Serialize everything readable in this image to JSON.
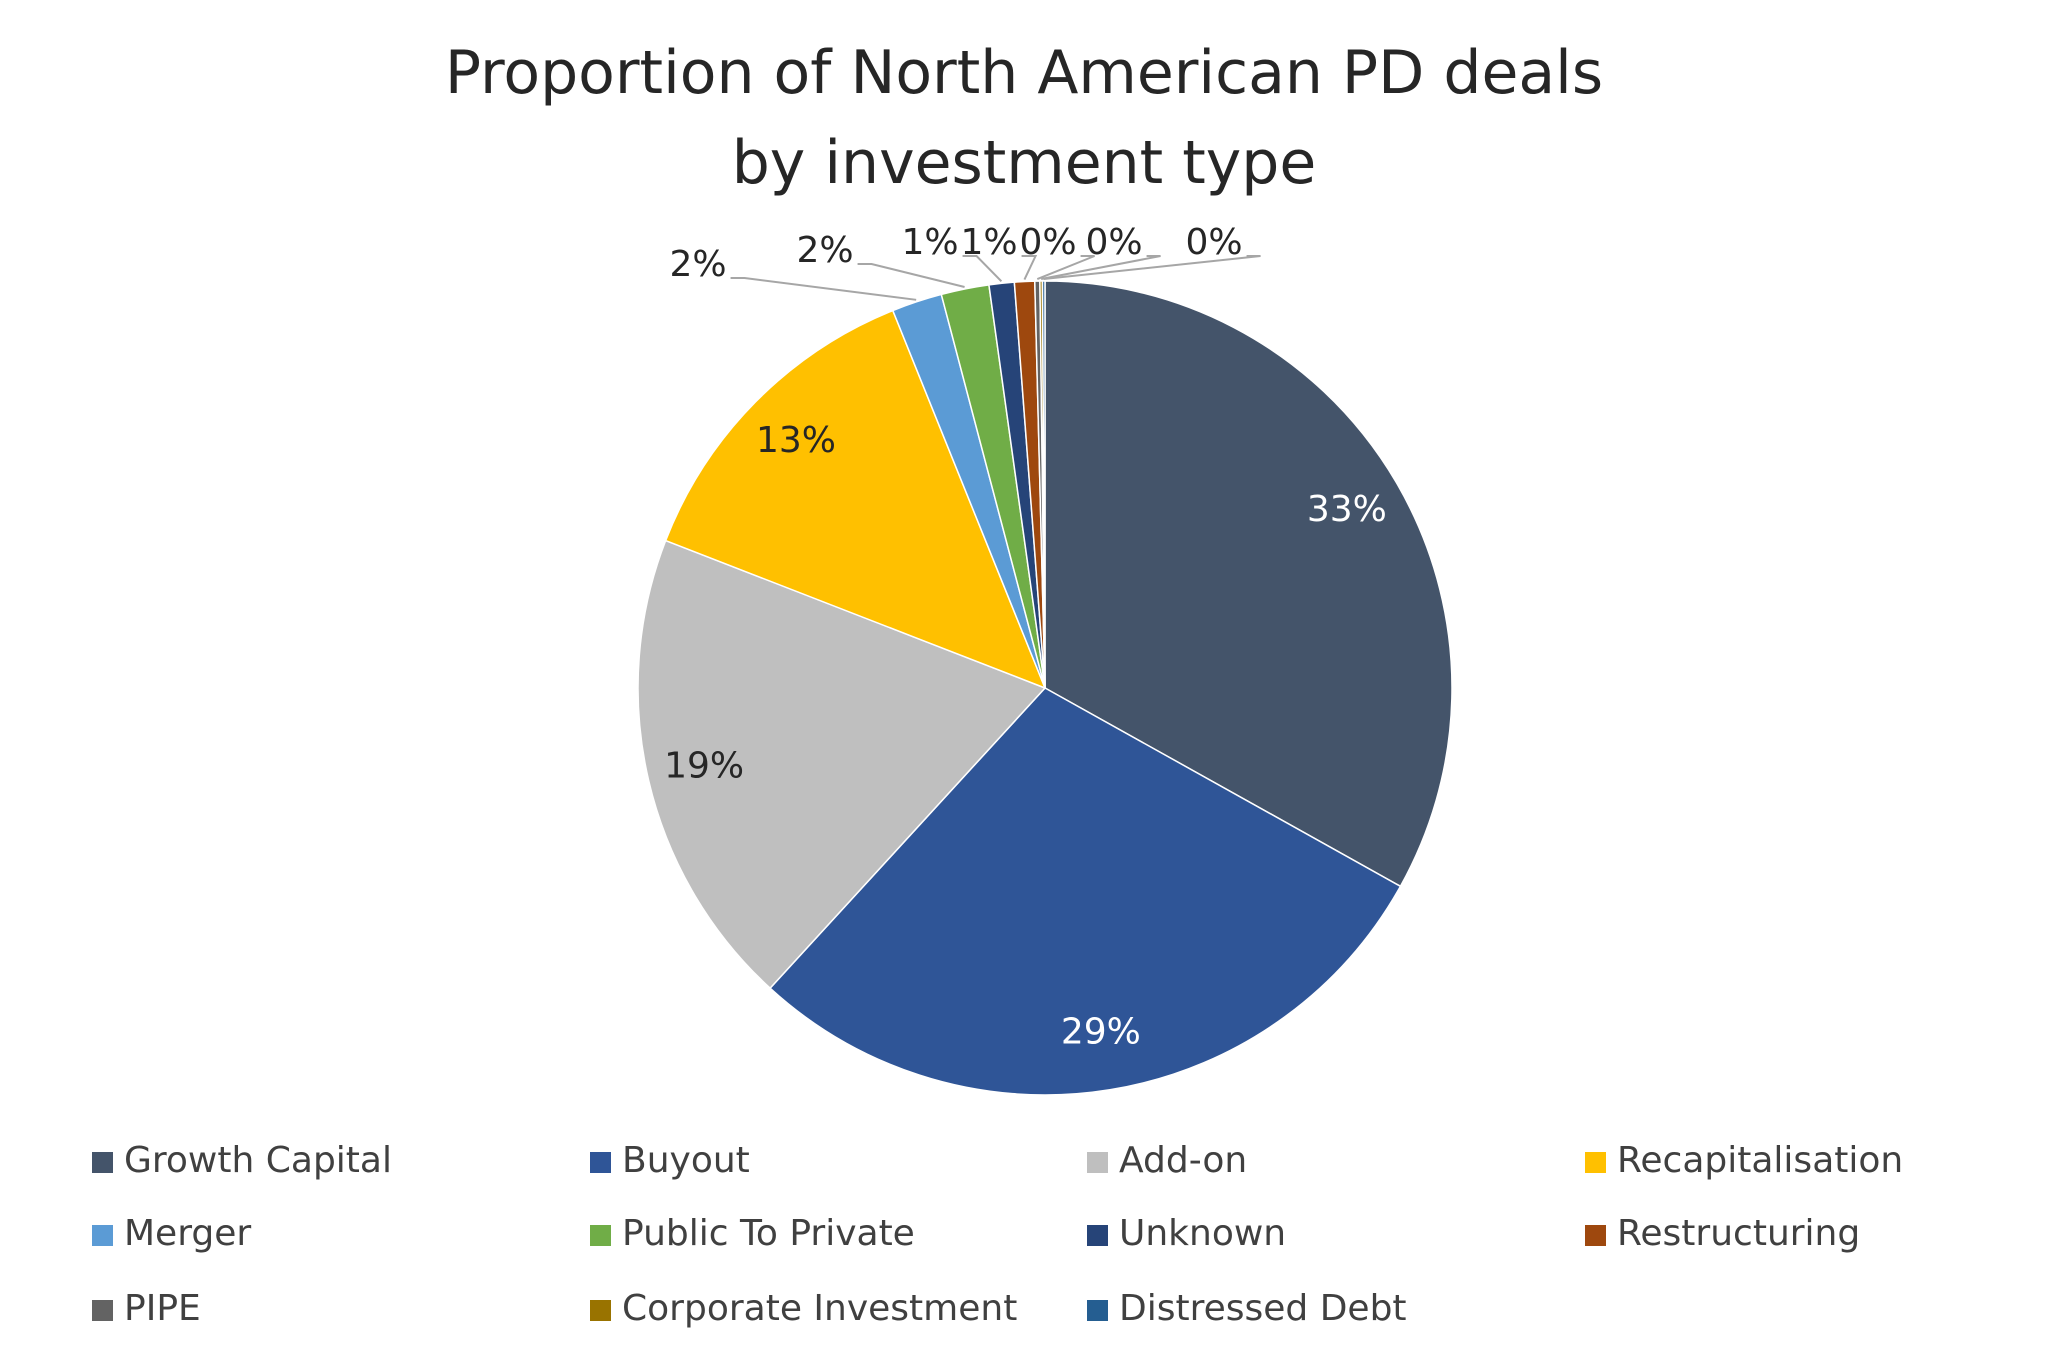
{
  "chart_data": {
    "type": "pie",
    "title": "Proportion of North American PD deals by investment type",
    "categories": [
      "Growth Capital",
      "Buyout",
      "Add-on",
      "Recapitalisation",
      "Merger",
      "Public To Private",
      "Unknown",
      "Restructuring",
      "PIPE",
      "Corporate Investment",
      "Distressed Debt"
    ],
    "values": [
      33.1,
      28.7,
      19.1,
      13.0,
      2.0,
      1.9,
      1.0,
      0.8,
      0.2,
      0.1,
      0.1
    ],
    "value_labels": [
      "33%",
      "29%",
      "19%",
      "13%",
      "2%",
      "2%",
      "1%",
      "1%",
      "0%",
      "0%",
      "0%"
    ],
    "colors": [
      "#44546a",
      "#2f5597",
      "#bfbfbf",
      "#ffc000",
      "#5b9bd5",
      "#70ad47",
      "#264478",
      "#9e480e",
      "#636363",
      "#997300",
      "#255e91"
    ],
    "legend": "bottom"
  }
}
